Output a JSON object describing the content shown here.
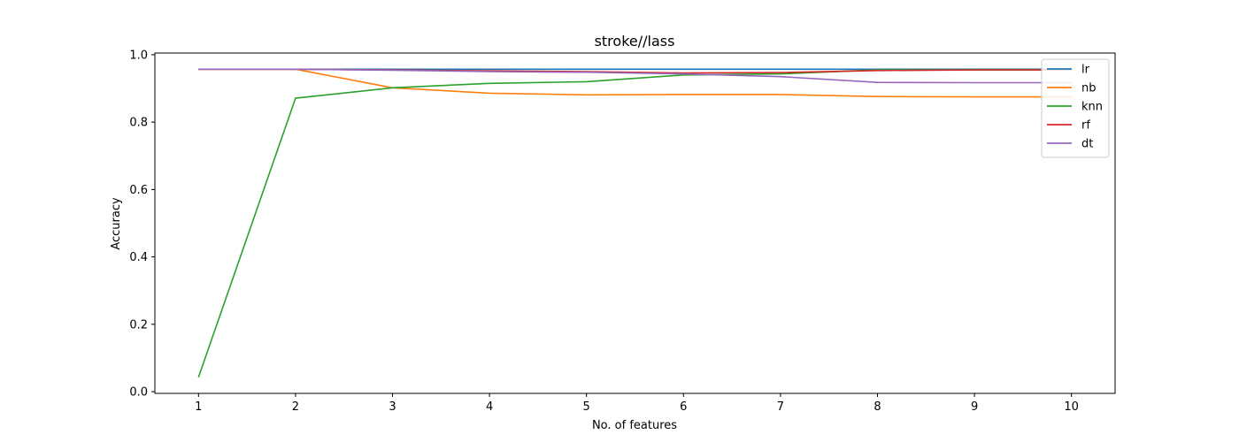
{
  "chart_data": {
    "type": "line",
    "title": "stroke//lass",
    "xlabel": "No. of features",
    "ylabel": "Accuracy",
    "x": [
      1,
      2,
      3,
      4,
      5,
      6,
      7,
      8,
      9,
      10
    ],
    "xlim": [
      0.55,
      10.45
    ],
    "ylim": [
      -0.005,
      1.005
    ],
    "xticks": [
      1,
      2,
      3,
      4,
      5,
      6,
      7,
      8,
      9,
      10
    ],
    "yticks": [
      0.0,
      0.2,
      0.4,
      0.6,
      0.8,
      1.0
    ],
    "ytick_labels": [
      "0.0",
      "0.2",
      "0.4",
      "0.6",
      "0.8",
      "1.0"
    ],
    "grid": false,
    "legend_position": "top-right",
    "series": [
      {
        "name": "lr",
        "color": "#1f77b4",
        "values": [
          0.957,
          0.957,
          0.957,
          0.957,
          0.957,
          0.957,
          0.957,
          0.957,
          0.957,
          0.957
        ]
      },
      {
        "name": "nb",
        "color": "#ff7f0e",
        "values": [
          0.957,
          0.957,
          0.902,
          0.886,
          0.881,
          0.882,
          0.882,
          0.876,
          0.875,
          0.875
        ]
      },
      {
        "name": "knn",
        "color": "#2ca02c",
        "values": [
          0.043,
          0.871,
          0.902,
          0.915,
          0.92,
          0.94,
          0.943,
          0.955,
          0.955,
          0.955
        ]
      },
      {
        "name": "rf",
        "color": "#d62728",
        "values": [
          0.957,
          0.957,
          0.955,
          0.952,
          0.95,
          0.946,
          0.947,
          0.953,
          0.955,
          0.955
        ]
      },
      {
        "name": "dt",
        "color": "#9467bd",
        "values": [
          0.957,
          0.957,
          0.954,
          0.95,
          0.948,
          0.943,
          0.935,
          0.918,
          0.917,
          0.917
        ]
      }
    ]
  }
}
